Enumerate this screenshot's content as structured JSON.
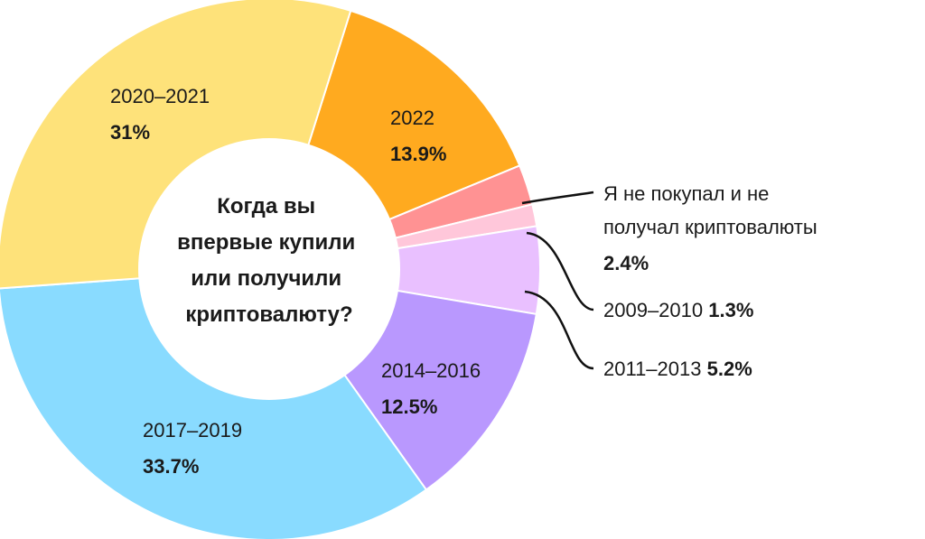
{
  "chart_data": {
    "type": "pie",
    "title": "Когда вы впервые купили или получили криптовалюту?",
    "title_lines": [
      "Когда вы",
      "впервые купили",
      "или получили",
      "криптовалюту?"
    ],
    "slices": [
      {
        "label": "2022",
        "value": 13.9,
        "value_text": "13.9%",
        "color": "#FFAA1F"
      },
      {
        "label": "Я не покупал и не получал криптовалюты",
        "label_lines": [
          "Я не покупал и не",
          "получал криптовалюты"
        ],
        "value": 2.4,
        "value_text": "2.4%",
        "color": "#FF9293"
      },
      {
        "label": "2009–2010",
        "value": 1.3,
        "value_text": "1.3%",
        "color": "#FFC7DA"
      },
      {
        "label": "2011–2013",
        "value": 5.2,
        "value_text": "5.2%",
        "color": "#E9C0FF"
      },
      {
        "label": "2014–2016",
        "value": 12.5,
        "value_text": "12.5%",
        "color": "#B998FE"
      },
      {
        "label": "2017–2019",
        "value": 33.7,
        "value_text": "33.7%",
        "color": "#89DBFF"
      },
      {
        "label": "2020–2021",
        "value": 31,
        "value_text": "31%",
        "color": "#FEE27A"
      }
    ]
  }
}
